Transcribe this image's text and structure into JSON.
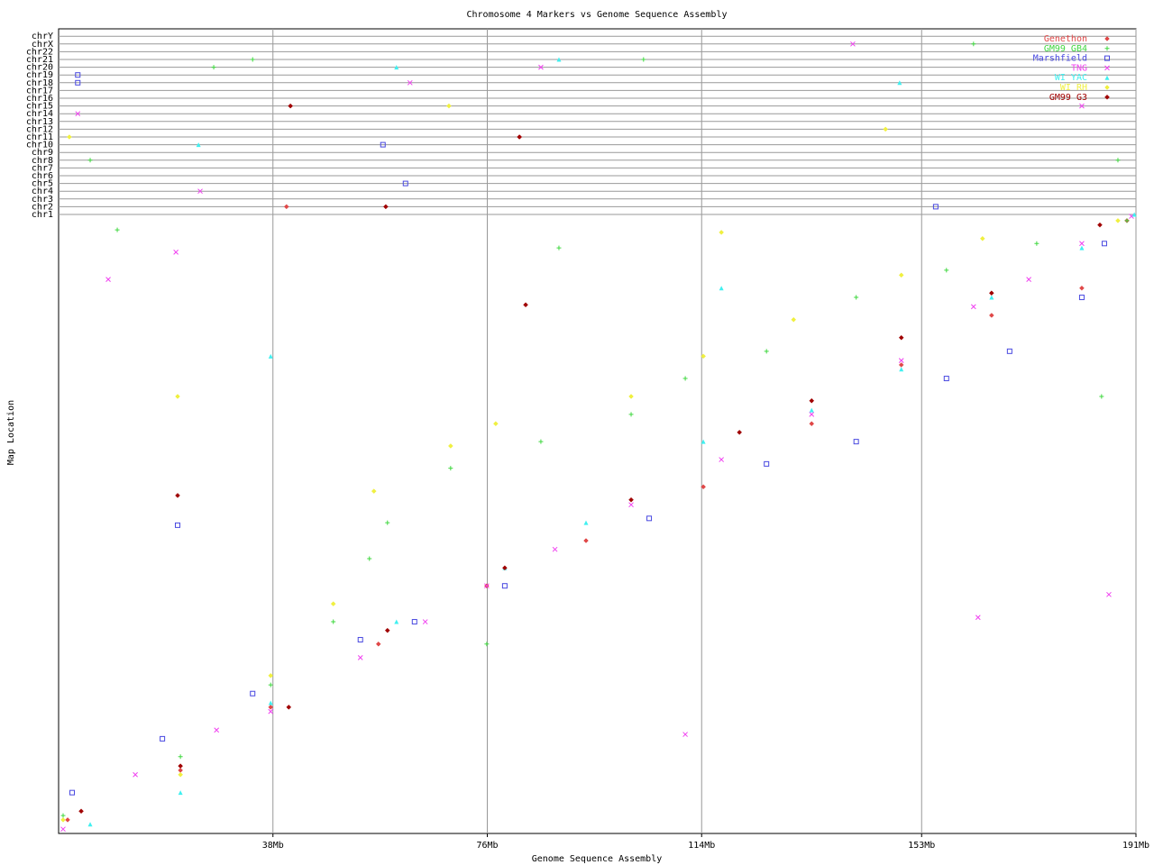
{
  "chart_data": {
    "type": "scatter",
    "title": "Chromosome 4 Markers vs Genome Sequence Assembly",
    "x_label": "Genome Sequence Assembly",
    "y_label": "Map Location",
    "xlim": [
      0,
      191
    ],
    "ylim": [
      0,
      100
    ],
    "xticks": [
      {
        "value": 38,
        "label": "38Mb"
      },
      {
        "value": 76,
        "label": "76Mb"
      },
      {
        "value": 114,
        "label": "114Mb"
      },
      {
        "value": 153,
        "label": "153Mb"
      },
      {
        "value": 191,
        "label": "191Mb"
      }
    ],
    "grid": true,
    "legend": "upper right",
    "chromosomes": [
      "chr1",
      "chr2",
      "chr3",
      "chr4",
      "chr5",
      "chr6",
      "chr7",
      "chr8",
      "chr9",
      "chr10",
      "chr11",
      "chr12",
      "chr13",
      "chr14",
      "chr15",
      "chr16",
      "chr17",
      "chr18",
      "chr19",
      "chr20",
      "chr21",
      "chr22",
      "chrX",
      "chrY"
    ],
    "series": [
      {
        "name": "Genethon",
        "color": "#e04848",
        "marker": "diamond",
        "x": [
          1.6,
          21.6,
          37.6,
          56.7,
          75.9,
          93.5,
          114.3,
          133.5,
          149.4,
          165.4,
          181.4,
          189.4
        ],
        "values": [
          2.2,
          10.2,
          20.4,
          30.6,
          40.0,
          47.3,
          56.0,
          66.2,
          75.7,
          83.7,
          88.1,
          99.0
        ],
        "off_x": [
          81.7,
          40.4
        ],
        "off_chr": [
          "chr11",
          "chr2"
        ]
      },
      {
        "name": "GM99 GB4",
        "color": "#40d840",
        "marker": "plus",
        "x": [
          0.8,
          21.6,
          37.6,
          48.7,
          55.1,
          58.3,
          69.5,
          85.5,
          101.5,
          111.1,
          125.5,
          141.4,
          157.4,
          173.4,
          189.4,
          10.4,
          88.7,
          184.9,
          75.9
        ],
        "values": [
          2.9,
          12.4,
          24.0,
          34.2,
          44.4,
          50.2,
          59.0,
          63.3,
          67.7,
          73.5,
          77.9,
          86.6,
          91.0,
          95.3,
          99.0,
          97.5,
          94.6,
          70.6,
          30.6
        ],
        "off_x": [
          27.5,
          34.4,
          162.2,
          103.7,
          187.8,
          5.6
        ],
        "off_chr": [
          "chr20",
          "chr21",
          "chrX",
          "chr21",
          "chr8",
          "chr8"
        ]
      },
      {
        "name": "Marshfield",
        "color": "#4848e0",
        "marker": "square",
        "x": [
          2.4,
          18.4,
          34.4,
          53.5,
          63.1,
          79.1,
          104.7,
          125.5,
          141.4,
          157.4,
          168.6,
          181.4,
          185.4,
          21.1
        ],
        "values": [
          6.6,
          15.3,
          22.6,
          31.3,
          34.2,
          40.0,
          50.9,
          59.7,
          63.3,
          73.5,
          77.9,
          86.6,
          95.3,
          49.8
        ],
        "off_x": [
          3.4,
          3.4,
          57.5,
          61.5,
          155.5
        ],
        "off_chr": [
          "chr19",
          "chr18",
          "chr10",
          "chr5",
          "chr2"
        ]
      },
      {
        "name": "TNG",
        "color": "#f040f0",
        "marker": "cross",
        "x": [
          0.8,
          13.6,
          28.0,
          37.6,
          53.5,
          65,
          75.9,
          88,
          101.5,
          117.5,
          133.5,
          149.4,
          162.2,
          172,
          181.4,
          190.2,
          20.8,
          8.8,
          111.1,
          163.0,
          186.2
        ],
        "values": [
          0.7,
          9.5,
          16.7,
          19.7,
          28.4,
          34.2,
          40.0,
          45.9,
          53.1,
          60.4,
          67.7,
          76.4,
          85.1,
          89.5,
          95.3,
          99.7,
          93.9,
          89.5,
          16.0,
          34.9,
          38.6
        ],
        "off_x": [
          3.4,
          85.5,
          140.8,
          25.1,
          181.4,
          62.3
        ],
        "off_chr": [
          "chr14",
          "chr20",
          "chrX",
          "chr4",
          "chr15",
          "chr18"
        ]
      },
      {
        "name": "WI YAC",
        "color": "#40f0f0",
        "marker": "triangle",
        "x": [
          5.6,
          21.6,
          37.6,
          59.9,
          79.1,
          93.5,
          114.3,
          133.5,
          149.4,
          165.4,
          181.4,
          190.7,
          37.6,
          117.5
        ],
        "values": [
          1.5,
          6.6,
          21.1,
          34.2,
          42.9,
          50.2,
          63.3,
          68.4,
          75.0,
          86.6,
          94.6,
          100,
          77.1,
          88.1
        ],
        "off_x": [
          59.9,
          88.7,
          149.1,
          24.8
        ],
        "off_chr": [
          "chr20",
          "chr21",
          "chr18",
          "chr10"
        ]
      },
      {
        "name": "WI RH",
        "color": "#f0f040",
        "marker": "diamond",
        "x": [
          0.8,
          21.6,
          37.6,
          48.7,
          55.9,
          69.5,
          77.5,
          101.5,
          114.3,
          130.3,
          149.4,
          163.8,
          187.8,
          21.1,
          117.5
        ],
        "values": [
          2.2,
          9.5,
          25.5,
          37.1,
          55.3,
          62.6,
          66.2,
          70.6,
          77.1,
          83.0,
          90.2,
          96.1,
          99.0,
          70.6,
          97.1
        ],
        "off_x": [
          69.2,
          146.6,
          1.9
        ],
        "off_chr": [
          "chr15",
          "chr12",
          "chr11"
        ]
      },
      {
        "name": "GM99 G3",
        "color": "#a00000",
        "marker": "diamond",
        "x": [
          4.0,
          21.6,
          40.8,
          58.3,
          79.1,
          101.5,
          120.7,
          133.5,
          149.4,
          165.4,
          184.6,
          21.1,
          82.8
        ],
        "values": [
          3.6,
          10.9,
          20.4,
          32.8,
          42.9,
          53.9,
          64.8,
          69.9,
          80.1,
          87.3,
          98.3,
          54.6,
          85.4
        ],
        "off_x": [
          41.1,
          81.7,
          58.0
        ],
        "off_chr": [
          "chr15",
          "chr11",
          "chr2"
        ]
      }
    ]
  }
}
